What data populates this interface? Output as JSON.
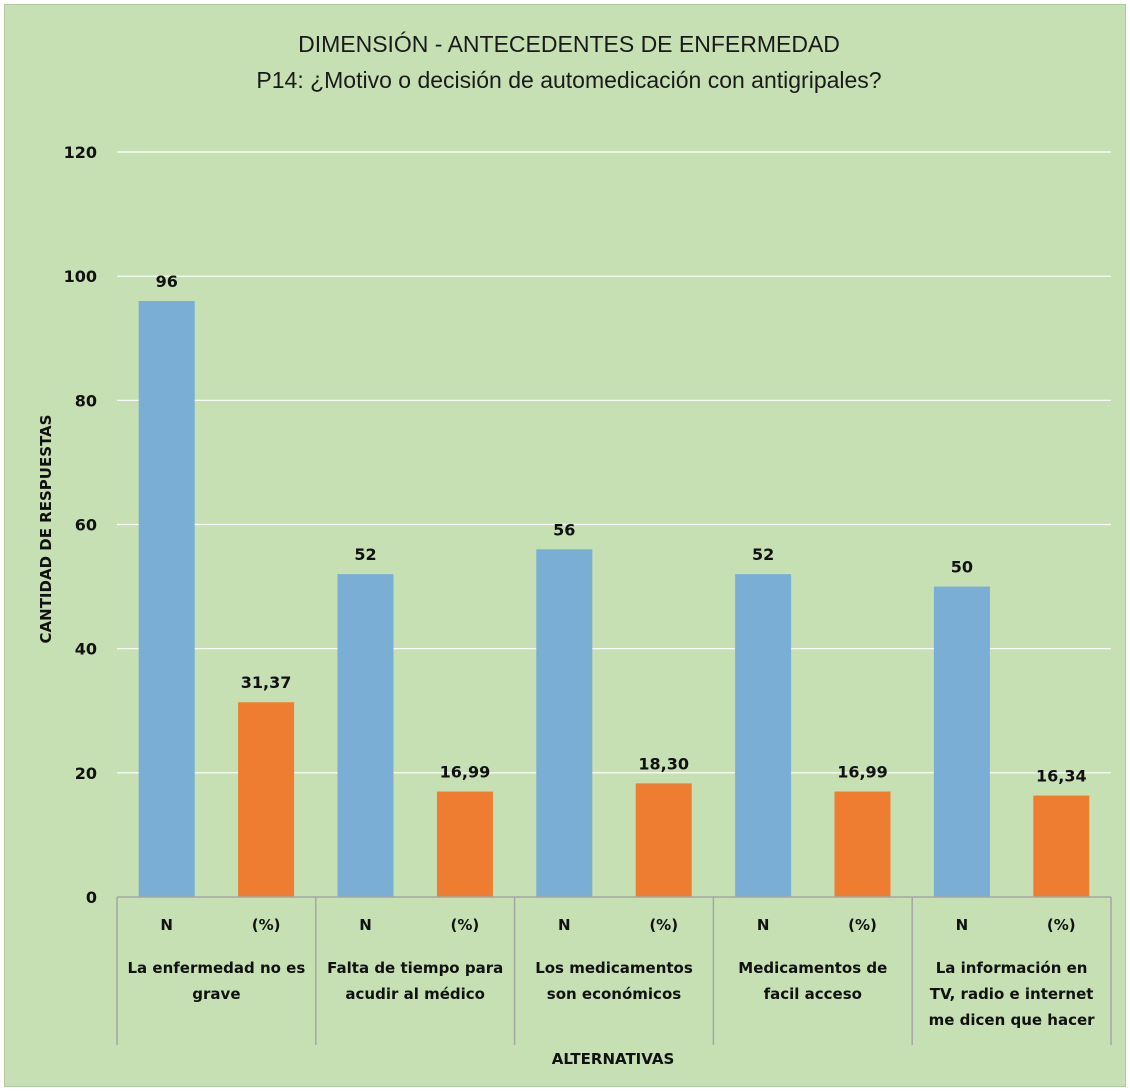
{
  "chart_data": {
    "type": "bar",
    "title": "DIMENSIÓN - ANTECEDENTES DE ENFERMEDAD",
    "subtitle": "P14: ¿Motivo o decisión de automedicación con antigripales?",
    "xlabel": "ALTERNATIVAS",
    "ylabel": "CANTIDAD DE RESPUESTAS",
    "ylim": [
      0,
      120
    ],
    "yticks": [
      "0",
      "20",
      "40",
      "60",
      "80",
      "100",
      "120"
    ],
    "grid": true,
    "legend": "none",
    "colors": {
      "N": "#7aaed4",
      "pct": "#ee7d31",
      "background": "#c6e0b4",
      "gridline": "#ffffff"
    },
    "categories": [
      {
        "label_lines": [
          "La enfermedad  no es",
          "grave"
        ],
        "bars": [
          {
            "sub": "N",
            "value": 96,
            "label": "96"
          },
          {
            "sub": "(%)",
            "value": 31.37,
            "label": "31,37"
          }
        ]
      },
      {
        "label_lines": [
          "Falta de tiempo para",
          "acudir al médico"
        ],
        "bars": [
          {
            "sub": "N",
            "value": 52,
            "label": "52"
          },
          {
            "sub": "(%)",
            "value": 16.99,
            "label": "16,99"
          }
        ]
      },
      {
        "label_lines": [
          "Los medicamentos",
          "son económicos"
        ],
        "bars": [
          {
            "sub": "N",
            "value": 56,
            "label": "56"
          },
          {
            "sub": "(%)",
            "value": 18.3,
            "label": "18,30"
          }
        ]
      },
      {
        "label_lines": [
          "Medicamentos  de",
          "facil acceso"
        ],
        "bars": [
          {
            "sub": "N",
            "value": 52,
            "label": "52"
          },
          {
            "sub": "(%)",
            "value": 16.99,
            "label": "16,99"
          }
        ]
      },
      {
        "label_lines": [
          "La información  en",
          "TV, radio e internet",
          "me dicen que hacer"
        ],
        "bars": [
          {
            "sub": "N",
            "value": 50,
            "label": "50"
          },
          {
            "sub": "(%)",
            "value": 16.34,
            "label": "16,34"
          }
        ]
      }
    ]
  }
}
